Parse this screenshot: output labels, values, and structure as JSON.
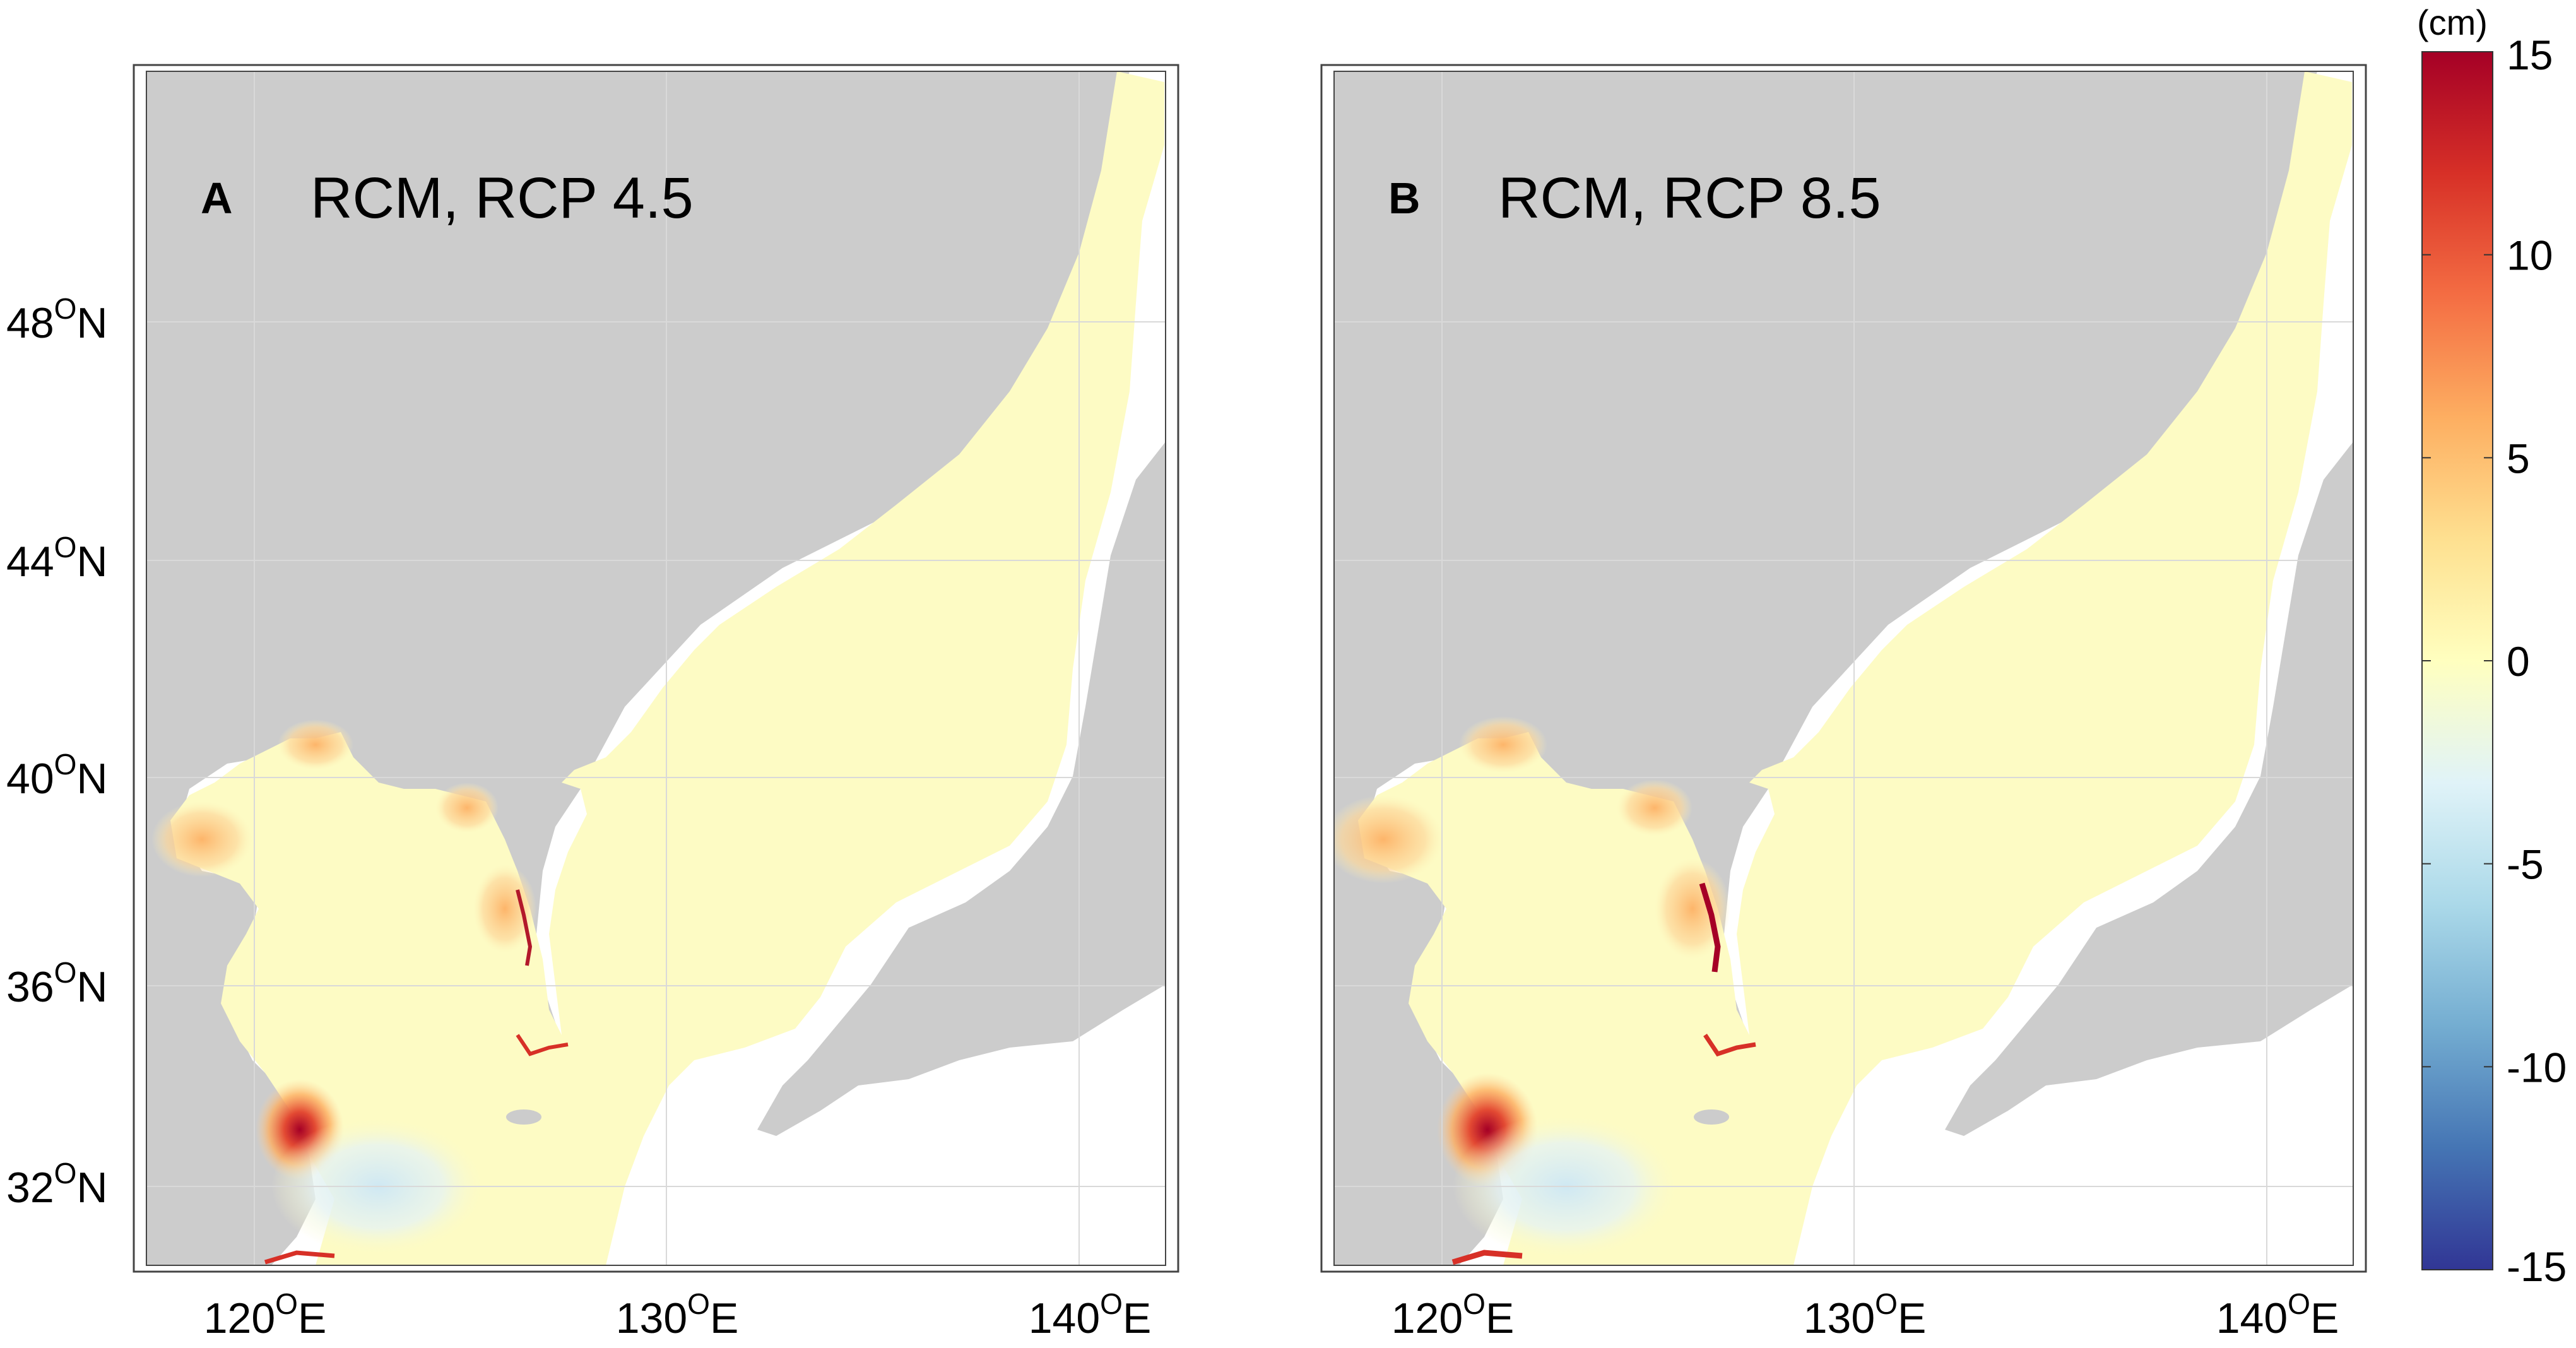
{
  "figure": {
    "panels": [
      {
        "id": "A",
        "letter": "A",
        "title": "RCM, RCP 4.5"
      },
      {
        "id": "B",
        "letter": "B",
        "title": "RCM, RCP 8.5"
      }
    ],
    "lat_ticks": [
      {
        "deg": "48",
        "suffix": "N"
      },
      {
        "deg": "44",
        "suffix": "N"
      },
      {
        "deg": "40",
        "suffix": "N"
      },
      {
        "deg": "36",
        "suffix": "N"
      },
      {
        "deg": "32",
        "suffix": "N"
      }
    ],
    "lon_ticks": [
      {
        "deg": "120",
        "suffix": "E"
      },
      {
        "deg": "130",
        "suffix": "E"
      },
      {
        "deg": "140",
        "suffix": "E"
      }
    ],
    "degree_symbol": "O",
    "colorbar": {
      "unit": "(cm)",
      "ticks": [
        "15",
        "10",
        "5",
        "0",
        "-5",
        "-10",
        "-15"
      ],
      "range": [
        -15,
        15
      ],
      "colors": [
        "#313695",
        "#4575b4",
        "#74add1",
        "#abd9e9",
        "#e0f3f8",
        "#ffffbf",
        "#fee090",
        "#fdae61",
        "#f46d43",
        "#d73027",
        "#a50026"
      ]
    },
    "colors": {
      "land": "#cccccc",
      "sea_near_zero": "#fdfbc4",
      "grid": "#d9d9d9"
    }
  }
}
